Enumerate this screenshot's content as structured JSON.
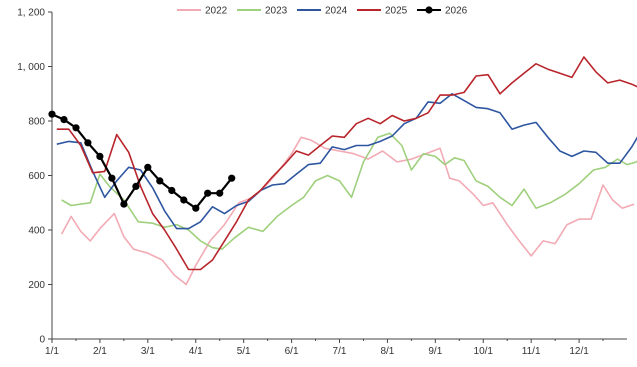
{
  "chart_data": {
    "type": "line",
    "title": "",
    "xlabel": "",
    "ylabel": "",
    "ylim": [
      0,
      1200
    ],
    "yticks": [
      0,
      200,
      400,
      600,
      800,
      1000,
      1200
    ],
    "ytick_labels": [
      "0",
      "200",
      "400",
      "600",
      "800",
      "1, 000",
      "1, 200"
    ],
    "x_ticks": [
      "1/1",
      "2/1",
      "3/1",
      "4/1",
      "5/1",
      "6/1",
      "7/1",
      "8/1",
      "9/1",
      "10/1",
      "11/1",
      "12/1"
    ],
    "x_range_months": [
      1,
      12.99
    ],
    "grid": false,
    "legend_position": "top",
    "series": [
      {
        "name": "2022",
        "color": "#f2aab4",
        "marker": false,
        "points": [
          [
            1.2,
            385
          ],
          [
            1.4,
            450
          ],
          [
            1.6,
            395
          ],
          [
            1.8,
            360
          ],
          [
            2.0,
            405
          ],
          [
            2.3,
            460
          ],
          [
            2.5,
            375
          ],
          [
            2.7,
            330
          ],
          [
            3.0,
            315
          ],
          [
            3.3,
            290
          ],
          [
            3.55,
            235
          ],
          [
            3.8,
            200
          ],
          [
            4.0,
            270
          ],
          [
            4.3,
            360
          ],
          [
            4.6,
            420
          ],
          [
            4.9,
            500
          ],
          [
            5.2,
            520
          ],
          [
            5.45,
            560
          ],
          [
            5.7,
            610
          ],
          [
            6.0,
            680
          ],
          [
            6.2,
            740
          ],
          [
            6.4,
            730
          ],
          [
            6.7,
            700
          ],
          [
            7.0,
            690
          ],
          [
            7.3,
            680
          ],
          [
            7.6,
            660
          ],
          [
            7.9,
            690
          ],
          [
            8.2,
            650
          ],
          [
            8.5,
            660
          ],
          [
            8.8,
            680
          ],
          [
            9.1,
            700
          ],
          [
            9.3,
            590
          ],
          [
            9.5,
            580
          ],
          [
            9.8,
            530
          ],
          [
            10.0,
            490
          ],
          [
            10.2,
            500
          ],
          [
            10.5,
            420
          ],
          [
            10.75,
            360
          ],
          [
            11.0,
            305
          ],
          [
            11.25,
            360
          ],
          [
            11.5,
            350
          ],
          [
            11.75,
            420
          ],
          [
            12.0,
            440
          ],
          [
            12.25,
            440
          ],
          [
            12.5,
            565
          ],
          [
            12.7,
            510
          ],
          [
            12.9,
            480
          ],
          [
            13.15,
            495
          ]
        ]
      },
      {
        "name": "2023",
        "color": "#9fd07d",
        "marker": false,
        "points": [
          [
            1.2,
            510
          ],
          [
            1.4,
            490
          ],
          [
            1.6,
            495
          ],
          [
            1.8,
            500
          ],
          [
            2.0,
            605
          ],
          [
            2.2,
            560
          ],
          [
            2.5,
            510
          ],
          [
            2.8,
            430
          ],
          [
            3.1,
            425
          ],
          [
            3.35,
            410
          ],
          [
            3.6,
            420
          ],
          [
            3.85,
            400
          ],
          [
            4.1,
            360
          ],
          [
            4.35,
            335
          ],
          [
            4.55,
            330
          ],
          [
            4.8,
            370
          ],
          [
            5.1,
            410
          ],
          [
            5.4,
            395
          ],
          [
            5.7,
            450
          ],
          [
            6.0,
            490
          ],
          [
            6.25,
            520
          ],
          [
            6.5,
            580
          ],
          [
            6.75,
            600
          ],
          [
            7.0,
            580
          ],
          [
            7.25,
            520
          ],
          [
            7.5,
            650
          ],
          [
            7.8,
            740
          ],
          [
            8.05,
            755
          ],
          [
            8.3,
            710
          ],
          [
            8.5,
            620
          ],
          [
            8.75,
            680
          ],
          [
            9.0,
            670
          ],
          [
            9.2,
            640
          ],
          [
            9.4,
            665
          ],
          [
            9.6,
            655
          ],
          [
            9.85,
            580
          ],
          [
            10.1,
            560
          ],
          [
            10.35,
            520
          ],
          [
            10.6,
            490
          ],
          [
            10.85,
            550
          ],
          [
            11.1,
            480
          ],
          [
            11.4,
            500
          ],
          [
            11.7,
            530
          ],
          [
            12.0,
            570
          ],
          [
            12.3,
            620
          ],
          [
            12.55,
            630
          ],
          [
            12.8,
            660
          ],
          [
            13.0,
            640
          ],
          [
            13.2,
            650
          ],
          [
            13.45,
            700
          ]
        ]
      },
      {
        "name": "2024",
        "color": "#2e56a0",
        "marker": false,
        "points": [
          [
            1.1,
            715
          ],
          [
            1.35,
            725
          ],
          [
            1.6,
            720
          ],
          [
            1.85,
            615
          ],
          [
            2.1,
            520
          ],
          [
            2.35,
            580
          ],
          [
            2.6,
            630
          ],
          [
            2.85,
            620
          ],
          [
            3.1,
            555
          ],
          [
            3.35,
            470
          ],
          [
            3.6,
            405
          ],
          [
            3.85,
            405
          ],
          [
            4.1,
            430
          ],
          [
            4.35,
            485
          ],
          [
            4.6,
            460
          ],
          [
            4.85,
            490
          ],
          [
            5.1,
            505
          ],
          [
            5.35,
            545
          ],
          [
            5.6,
            565
          ],
          [
            5.85,
            570
          ],
          [
            6.1,
            605
          ],
          [
            6.35,
            640
          ],
          [
            6.6,
            645
          ],
          [
            6.85,
            705
          ],
          [
            7.1,
            695
          ],
          [
            7.35,
            710
          ],
          [
            7.6,
            710
          ],
          [
            7.85,
            725
          ],
          [
            8.1,
            745
          ],
          [
            8.35,
            790
          ],
          [
            8.6,
            810
          ],
          [
            8.85,
            870
          ],
          [
            9.1,
            865
          ],
          [
            9.35,
            900
          ],
          [
            9.6,
            875
          ],
          [
            9.85,
            850
          ],
          [
            10.1,
            845
          ],
          [
            10.35,
            830
          ],
          [
            10.6,
            770
          ],
          [
            10.85,
            785
          ],
          [
            11.1,
            795
          ],
          [
            11.35,
            740
          ],
          [
            11.6,
            690
          ],
          [
            11.85,
            670
          ],
          [
            12.1,
            690
          ],
          [
            12.35,
            685
          ],
          [
            12.6,
            645
          ],
          [
            12.85,
            645
          ],
          [
            13.1,
            705
          ],
          [
            13.35,
            780
          ],
          [
            13.6,
            780
          ],
          [
            13.85,
            775
          ]
        ]
      },
      {
        "name": "2025",
        "color": "#b8252b",
        "marker": false,
        "points": [
          [
            1.1,
            770
          ],
          [
            1.35,
            770
          ],
          [
            1.6,
            710
          ],
          [
            1.85,
            610
          ],
          [
            2.1,
            615
          ],
          [
            2.35,
            750
          ],
          [
            2.6,
            685
          ],
          [
            2.85,
            560
          ],
          [
            3.1,
            460
          ],
          [
            3.35,
            400
          ],
          [
            3.6,
            330
          ],
          [
            3.85,
            255
          ],
          [
            4.1,
            255
          ],
          [
            4.35,
            290
          ],
          [
            4.6,
            360
          ],
          [
            4.85,
            430
          ],
          [
            5.1,
            510
          ],
          [
            5.35,
            545
          ],
          [
            5.6,
            595
          ],
          [
            5.85,
            640
          ],
          [
            6.1,
            690
          ],
          [
            6.35,
            675
          ],
          [
            6.6,
            710
          ],
          [
            6.85,
            745
          ],
          [
            7.1,
            740
          ],
          [
            7.35,
            790
          ],
          [
            7.6,
            810
          ],
          [
            7.85,
            790
          ],
          [
            8.1,
            820
          ],
          [
            8.35,
            800
          ],
          [
            8.6,
            810
          ],
          [
            8.85,
            830
          ],
          [
            9.1,
            895
          ],
          [
            9.35,
            895
          ],
          [
            9.6,
            905
          ],
          [
            9.85,
            965
          ],
          [
            10.1,
            970
          ],
          [
            10.35,
            900
          ],
          [
            10.6,
            940
          ],
          [
            10.85,
            975
          ],
          [
            11.1,
            1010
          ],
          [
            11.35,
            990
          ],
          [
            11.6,
            975
          ],
          [
            11.85,
            960
          ],
          [
            12.1,
            1035
          ],
          [
            12.35,
            980
          ],
          [
            12.6,
            940
          ],
          [
            12.85,
            950
          ],
          [
            13.1,
            935
          ],
          [
            13.35,
            915
          ],
          [
            13.6,
            865
          ],
          [
            13.85,
            820
          ]
        ]
      },
      {
        "name": "2026",
        "color": "#000000",
        "marker": true,
        "points": [
          [
            1.0,
            825
          ],
          [
            1.25,
            805
          ],
          [
            1.5,
            775
          ],
          [
            1.75,
            720
          ],
          [
            2.0,
            670
          ],
          [
            2.25,
            590
          ],
          [
            2.5,
            495
          ],
          [
            2.75,
            560
          ],
          [
            3.0,
            630
          ],
          [
            3.25,
            580
          ],
          [
            3.5,
            545
          ],
          [
            3.75,
            510
          ],
          [
            4.0,
            480
          ],
          [
            4.25,
            535
          ],
          [
            4.5,
            535
          ],
          [
            4.75,
            590
          ]
        ]
      }
    ]
  }
}
